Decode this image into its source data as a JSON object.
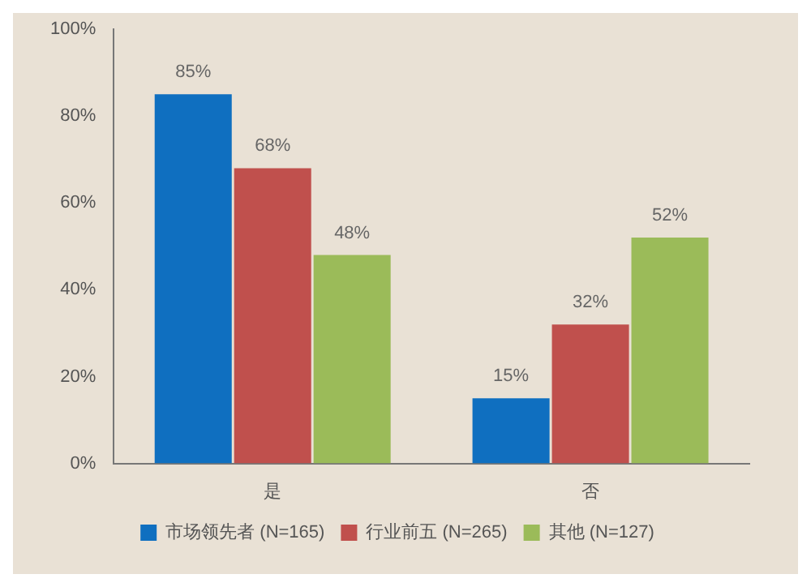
{
  "chart_data": {
    "type": "bar",
    "categories": [
      "是",
      "否"
    ],
    "series": [
      {
        "name": "市场领先者 (N=165)",
        "color": "#0f6fc0",
        "values": [
          85,
          15
        ],
        "value_labels": [
          "85%",
          "15%"
        ]
      },
      {
        "name": "行业前五 (N=265)",
        "color": "#c0504d",
        "values": [
          68,
          32
        ],
        "value_labels": [
          "68%",
          "32%"
        ]
      },
      {
        "name": "其他 (N=127)",
        "color": "#9bbb59",
        "values": [
          48,
          52
        ],
        "value_labels": [
          "48%",
          "52%"
        ]
      }
    ],
    "ylim": [
      0,
      100
    ],
    "yticks": [
      {
        "value": 0,
        "label": "0%"
      },
      {
        "value": 20,
        "label": "20%"
      },
      {
        "value": 40,
        "label": "40%"
      },
      {
        "value": 60,
        "label": "60%"
      },
      {
        "value": 80,
        "label": "80%"
      },
      {
        "value": 100,
        "label": "100%"
      }
    ],
    "grid": false,
    "legend": "bottom"
  }
}
